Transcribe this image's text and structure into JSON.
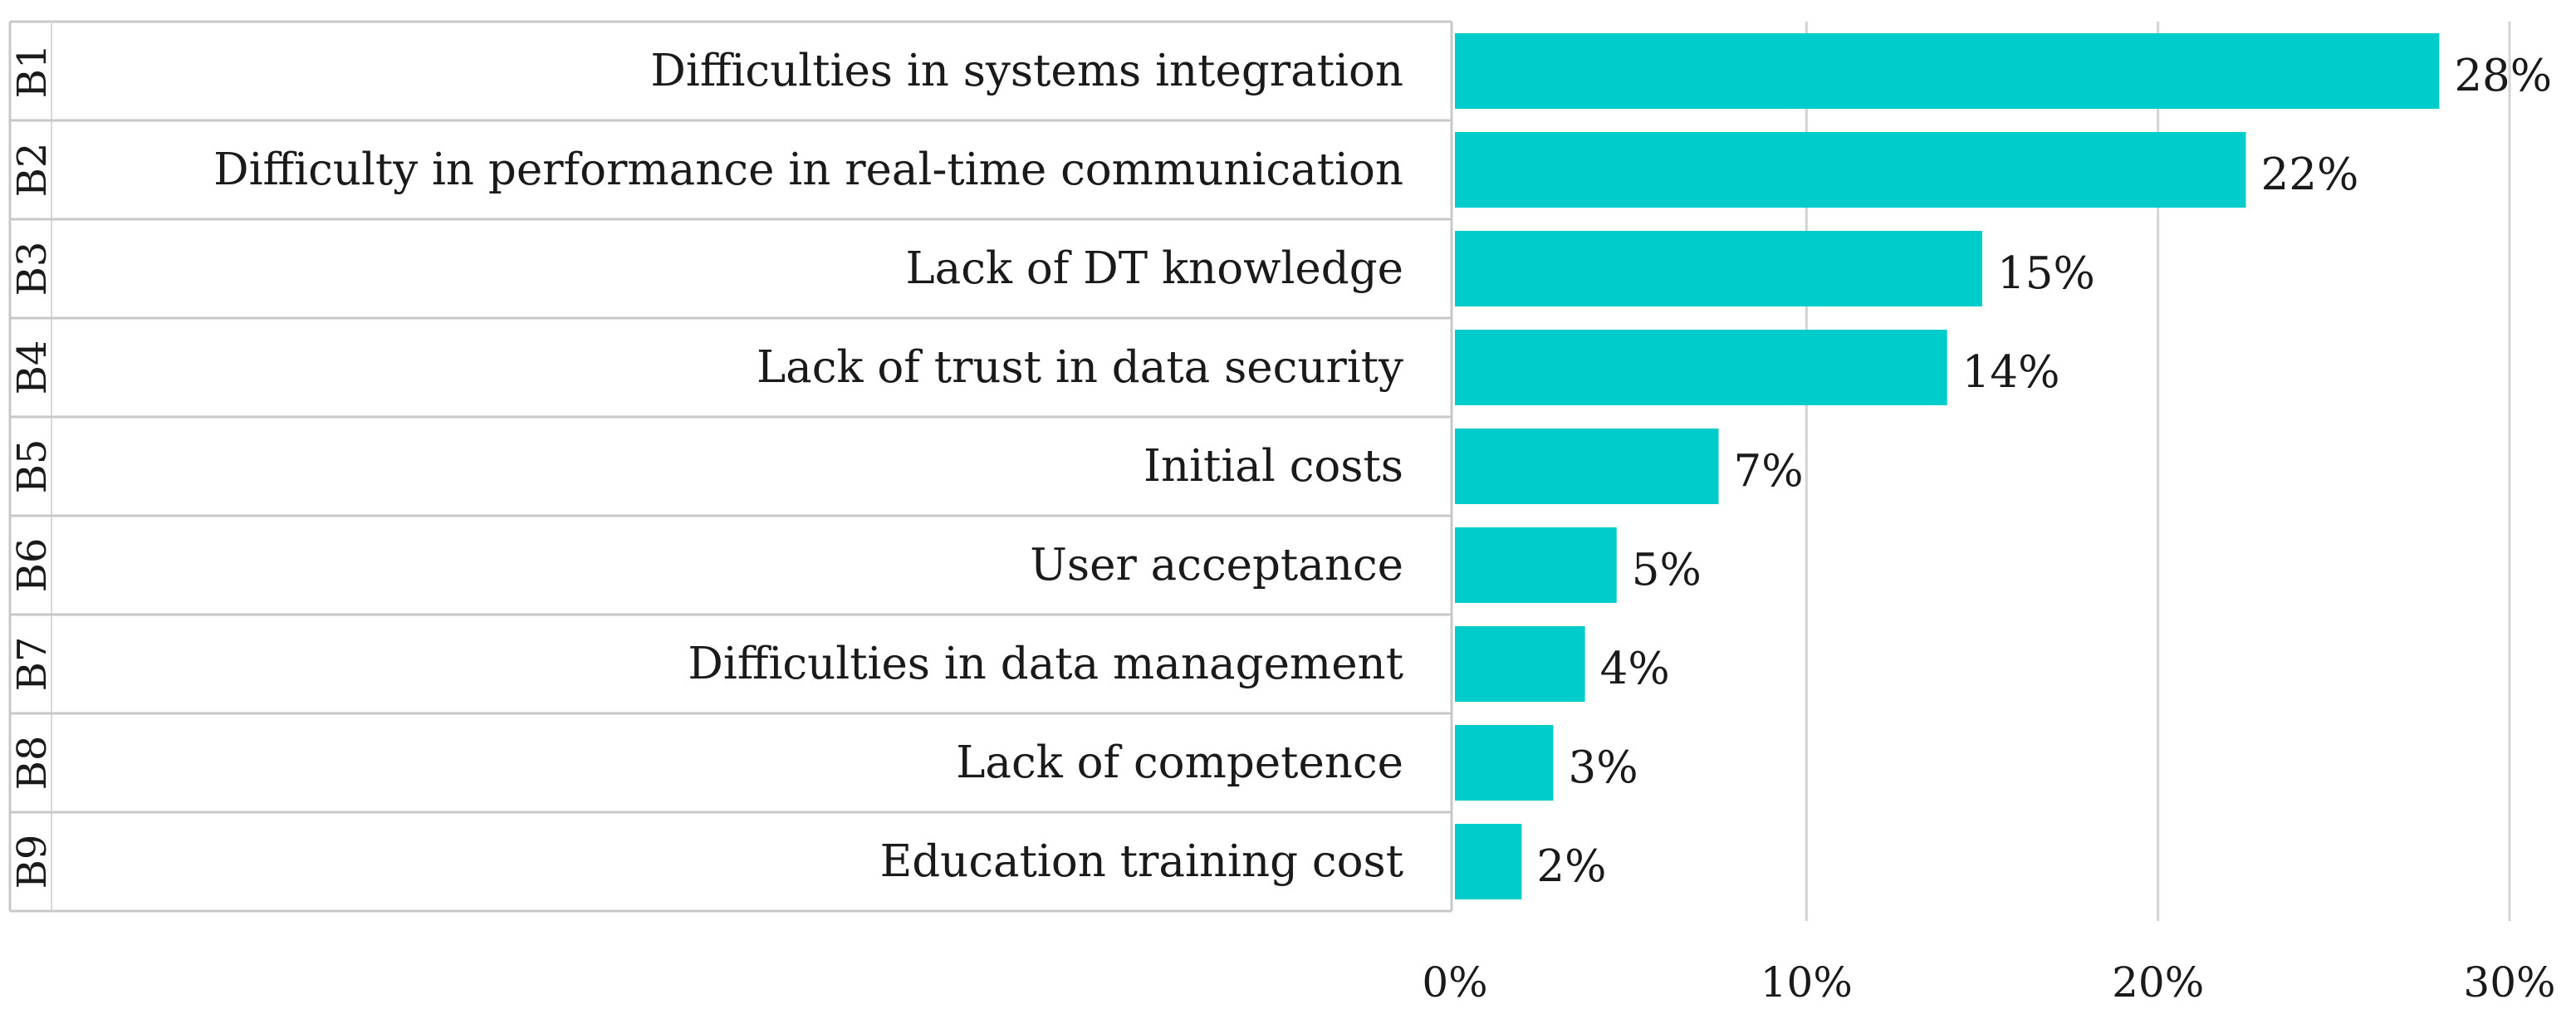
{
  "chart_data": {
    "type": "bar",
    "orientation": "horizontal",
    "title": "",
    "xlabel": "",
    "ylabel": "",
    "xlim": [
      0,
      30
    ],
    "x_ticks": [
      "0%",
      "10%",
      "20%",
      "30%"
    ],
    "grid": true,
    "bar_color": "#00CCCC",
    "codes": [
      "B1",
      "B2",
      "B3",
      "B4",
      "B5",
      "B6",
      "B7",
      "B8",
      "B9"
    ],
    "categories": [
      "Difficulties in systems integration",
      "Difficulty in performance in real-time communication",
      "Lack of DT knowledge",
      "Lack of trust in data security",
      "Initial costs",
      "User acceptance",
      "Difficulties in data management",
      "Lack of competence",
      "Education training cost"
    ],
    "values": [
      28,
      22.5,
      15,
      14,
      7.5,
      4.6,
      3.7,
      2.8,
      1.9
    ],
    "value_labels": [
      "28%",
      "22%",
      "15%",
      "14%",
      "7%",
      "5%",
      "4%",
      "3%",
      "2%"
    ]
  }
}
